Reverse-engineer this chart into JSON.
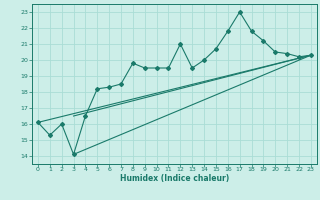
{
  "xlabel": "Humidex (Indice chaleur)",
  "bg_color": "#cceee8",
  "grid_color": "#aaddd5",
  "line_color": "#1a7a6a",
  "xlim": [
    -0.5,
    23.5
  ],
  "ylim": [
    13.5,
    23.5
  ],
  "xticks": [
    0,
    1,
    2,
    3,
    4,
    5,
    6,
    7,
    8,
    9,
    10,
    11,
    12,
    13,
    14,
    15,
    16,
    17,
    18,
    19,
    20,
    21,
    22,
    23
  ],
  "yticks": [
    14,
    15,
    16,
    17,
    18,
    19,
    20,
    21,
    22,
    23
  ],
  "main_x": [
    0,
    1,
    2,
    3,
    4,
    5,
    6,
    7,
    8,
    9,
    10,
    11,
    12,
    13,
    14,
    15,
    16,
    17,
    18,
    19,
    20,
    21,
    22,
    23
  ],
  "main_y": [
    16.1,
    15.3,
    16.0,
    14.1,
    16.5,
    18.2,
    18.3,
    18.5,
    19.8,
    19.5,
    19.5,
    19.5,
    21.0,
    19.5,
    20.0,
    20.7,
    21.8,
    23.0,
    21.8,
    21.2,
    20.5,
    20.4,
    20.2,
    20.3
  ],
  "line1_x": [
    0,
    23
  ],
  "line1_y": [
    16.1,
    20.3
  ],
  "line2_x": [
    3,
    23
  ],
  "line2_y": [
    14.1,
    20.3
  ],
  "line3_x": [
    3,
    23
  ],
  "line3_y": [
    16.5,
    20.3
  ],
  "marker_size": 2.0,
  "line_width": 0.8,
  "tick_fontsize": 4.5,
  "xlabel_fontsize": 5.5
}
